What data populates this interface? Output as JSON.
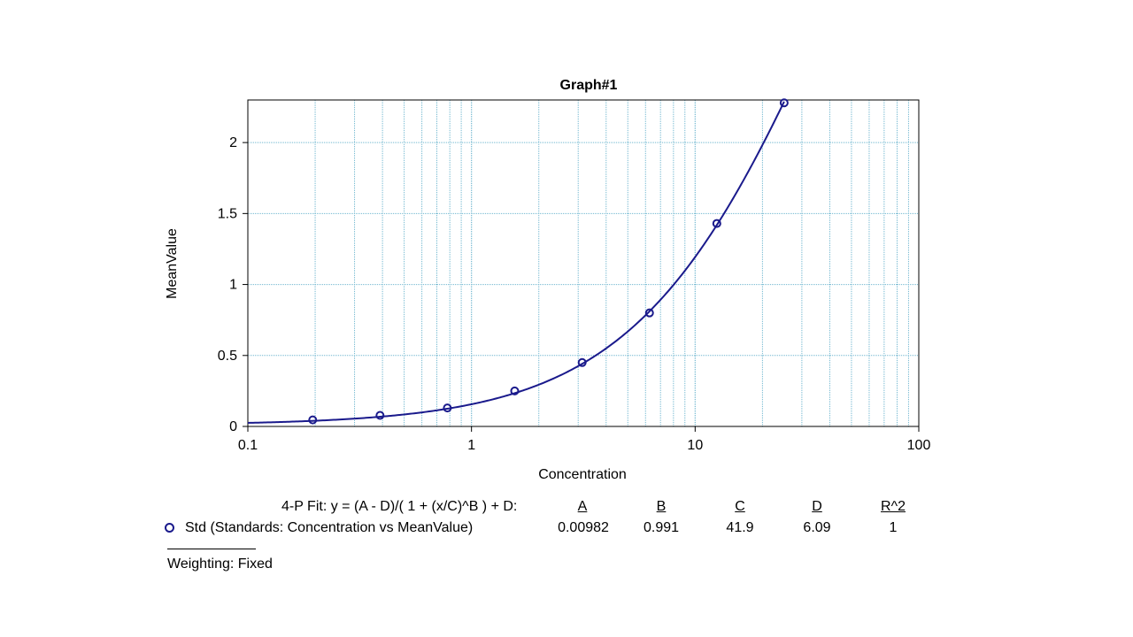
{
  "chart_data": {
    "type": "scatter",
    "title": "Graph#1",
    "xlabel": "Concentration",
    "ylabel": "MeanValue",
    "xscale": "log",
    "xlim": [
      0.1,
      100
    ],
    "ylim": [
      0,
      2.3
    ],
    "x_ticks": [
      "0.1",
      "1",
      "10",
      "100"
    ],
    "y_ticks": [
      "0",
      "0.5",
      "1",
      "1.5",
      "2"
    ],
    "grid": true,
    "series": [
      {
        "name": "Std (Standards: Concentration vs MeanValue)",
        "color": "#1a1a8c",
        "x": [
          0.195,
          0.39,
          0.78,
          1.56,
          3.125,
          6.25,
          12.5,
          25
        ],
        "y": [
          0.046,
          0.078,
          0.13,
          0.25,
          0.45,
          0.8,
          1.43,
          2.28
        ]
      }
    ],
    "fit": {
      "model": "4-P Fit",
      "A": 0.00982,
      "B": 0.991,
      "C": 41.9,
      "D": 6.09
    }
  },
  "fit_table": {
    "equation": "4-P Fit:  y = (A - D)/( 1 + (x/C)^B ) + D:",
    "headers": [
      "A",
      "B",
      "C",
      "D",
      "R^2"
    ],
    "row_label": "Std (Standards: Concentration vs MeanValue)",
    "values": [
      "0.00982",
      "0.991",
      "41.9",
      "6.09",
      "1"
    ]
  },
  "weighting": "Weighting: Fixed"
}
